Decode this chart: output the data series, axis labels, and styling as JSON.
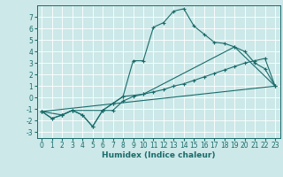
{
  "title": "",
  "xlabel": "Humidex (Indice chaleur)",
  "background_color": "#cce8e8",
  "grid_color": "#ffffff",
  "line_color": "#1a6b6b",
  "x_values": [
    0,
    1,
    2,
    3,
    4,
    5,
    6,
    7,
    8,
    9,
    10,
    11,
    12,
    13,
    14,
    15,
    16,
    17,
    18,
    19,
    20,
    21,
    22,
    23
  ],
  "line1_y": [
    -1.2,
    -1.8,
    -1.5,
    -1.1,
    -1.5,
    -2.5,
    -1.1,
    -0.5,
    0.1,
    3.2,
    3.2,
    6.1,
    6.5,
    7.5,
    7.7,
    6.2,
    5.5,
    4.8,
    4.7,
    4.4,
    4.0,
    3.0,
    2.5,
    1.0
  ],
  "line2_y": [
    -1.2,
    -1.8,
    -1.5,
    -1.1,
    -1.5,
    -2.5,
    -1.1,
    -1.1,
    -0.3,
    0.1,
    0.3,
    0.5,
    0.7,
    1.0,
    1.2,
    1.5,
    1.8,
    2.1,
    2.4,
    2.7,
    3.0,
    3.2,
    3.4,
    1.0
  ],
  "line3_x": [
    0,
    23
  ],
  "line3_y": [
    -1.2,
    1.0
  ],
  "line4_points": [
    [
      0,
      -1.2
    ],
    [
      2,
      -1.5
    ],
    [
      3,
      -1.1
    ],
    [
      6,
      -1.1
    ],
    [
      7,
      -0.5
    ],
    [
      8,
      0.1
    ],
    [
      10,
      0.3
    ],
    [
      19,
      4.4
    ],
    [
      23,
      1.0
    ]
  ],
  "xlim": [
    -0.5,
    23.5
  ],
  "ylim": [
    -3.5,
    8.0
  ],
  "xticks": [
    0,
    1,
    2,
    3,
    4,
    5,
    6,
    7,
    8,
    9,
    10,
    11,
    12,
    13,
    14,
    15,
    16,
    17,
    18,
    19,
    20,
    21,
    22,
    23
  ],
  "yticks": [
    -3,
    -2,
    -1,
    0,
    1,
    2,
    3,
    4,
    5,
    6,
    7
  ],
  "tick_fontsize": 5.5,
  "xlabel_fontsize": 6.5
}
